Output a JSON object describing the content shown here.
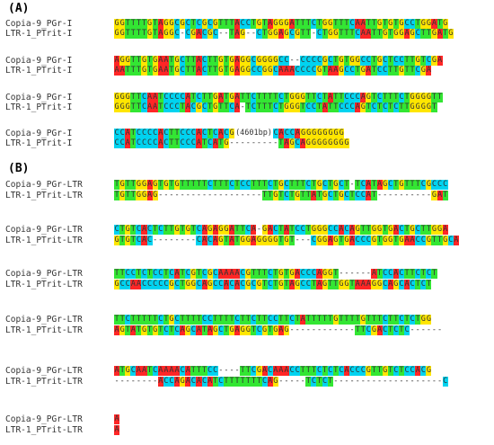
{
  "panels": [
    {
      "label": "(A)",
      "blocks": [
        {
          "rows": [
            {
              "name": "Copia-9_PGr-I",
              "seq": "GGTTTTGTAGGCGCTCGCGTTTACCTGTAGGGATTTCTGGTTTCAATTGTGTGCCTGGATG"
            },
            {
              "name": "LTR-1_PTrit-I",
              "seq": "GGTTTTGTAGGC-CGACGC--TAG--CTGGAGCGTT-CTGGTTTCAATTGTGGAGCTTGATG"
            }
          ]
        },
        {
          "rows": [
            {
              "name": "Copia-9_PGr-I",
              "seq": "AGGTTGTGAATGCTTACTTGTGAGGCGGGGCC--CCCCGCTGTGGCCTGCTCCTTGTCGA"
            },
            {
              "name": "LTR-1_PTrit-I",
              "seq": "AATTTGTGAATGCTTACTTGTGAGGCCGGCAAACCCCGTAAGCCTGATCCTTGTTCGA"
            }
          ]
        },
        {
          "rows": [
            {
              "name": "Copia-9_PGr-I",
              "seq": "GGGTTCAATCCCCATCTTGATGATTCTTTTCTGGGTTCTATTCCCAGTCTTTCTGGGGTT"
            },
            {
              "name": "LTR-1_PTrit-I",
              "seq": "GGGTTCAATCCCTACGCTGTTCA-TCTTTCTGGGTCCTATTCCCAGTCTCTCTTGGGGT"
            }
          ]
        },
        {
          "rows": [
            {
              "name": "Copia-9_PGr-I",
              "seq": "CCATCCCCACTTCCCACTCACG(4601bp)CACCAGGGGGGGG"
            },
            {
              "name": "LTR-1_PTrit-I",
              "seq": "CCATCCCCACTTCCCATCATG---------TAGCAGGGGGGGG"
            }
          ]
        }
      ]
    },
    {
      "label": "(B)",
      "blocks": [
        {
          "rows": [
            {
              "name": "Copia-9_PGr-LTR",
              "seq": "TGTTGGAGTGTGTTTTTCTTTCTCCTTTCTGCTTTCTGCTGCT-TCATAGCTGTTTCGCCC"
            },
            {
              "name": "LTR-1_PTrit-LTR",
              "seq": "TGTTGGAG-------------------TTGTCTGTTATGCTGCTCCAT----------GAT"
            }
          ]
        },
        {
          "rows": [
            {
              "name": "Copia-9_PGr-LTR",
              "seq": "CTGTCACTCTTGTGTCAGAGGATTCA-GACTATCCTGGGCCACAGTTGGTGACTGCTTGGA"
            },
            {
              "name": "LTR-1_PTrit-LTR",
              "seq": "GTGTCAC--------CACAGTATGGAGGGGTGT---CGGAGTGACCCGTGGTGAACCGTTGCA"
            }
          ]
        },
        {
          "rows": [
            {
              "name": "Copia-9_PGr-LTR",
              "seq": "TTCCTCTCCTCATCGTCGCAAAACGTTTCTGTGACCCAGGT------ATCCACTTCTCT"
            },
            {
              "name": "LTR-1_PTrit-LTR",
              "seq": "GCCAACCCCCGCTGGCAGCCACACGCGTCTGTAGCCTAGTTGGTAAAGGCAGCACTCT"
            }
          ]
        },
        {
          "rows": [
            {
              "name": "Copia-9_PGr-LTR",
              "seq": "TTCTTTTTCTGCTTTTCCTTTTCTTCTTCCTTCTATTTTTGTTTTGTTTCTTCTCTGG"
            },
            {
              "name": "LTR-1_PTrit-LTR",
              "seq": "AGTATGTGTCTCAGCATAGCTGAGGTCGTGAG------------TTCGACTCTC------"
            }
          ]
        },
        {
          "rows": [
            {
              "name": "Copia-9_PGr-LTR",
              "seq": "ATGCAATCAAAACATTTCC----TTCGACAAACCTTTCTCTCACCCGTTGTCTCCACG"
            },
            {
              "name": "LTR-1_PTrit-LTR",
              "seq": "--------ACCAGACACATCTTTTTTTCAG-----TCTCT--------------------C"
            }
          ]
        },
        {
          "rows": [
            {
              "name": "Copia-9_PGr-LTR",
              "seq": "A"
            },
            {
              "name": "LTR-1_PTrit-LTR",
              "seq": "A"
            }
          ]
        }
      ]
    }
  ],
  "colors": {
    "A": "#ff2626",
    "C": "#00d3f0",
    "G": "#ffe600",
    "T": "#33e633"
  }
}
